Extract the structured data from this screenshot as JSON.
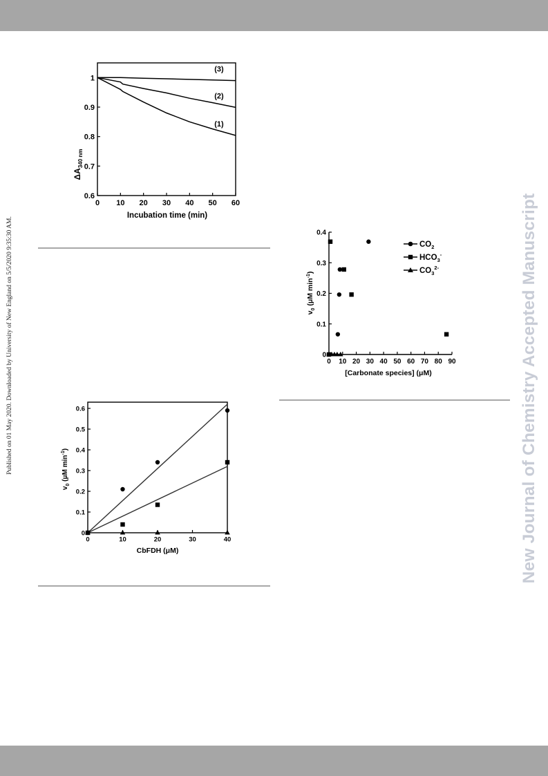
{
  "page": {
    "published_note": "Published on 01 May 2020. Downloaded by University of New England on 5/5/2020 9:35:30 AM.",
    "watermark": "New Journal of Chemistry Accepted Manuscript"
  },
  "chart_data": [
    {
      "type": "line",
      "ylabel_main": "ΔA",
      "ylabel_sub": "340 nm",
      "xlabel": "Incubation time (min)",
      "xlim": [
        0,
        60
      ],
      "ylim": [
        0.6,
        1.05
      ],
      "xticks": [
        "0",
        "10",
        "20",
        "30",
        "40",
        "50",
        "60"
      ],
      "yticks": [
        "0.6",
        "0.7",
        "0.8",
        "0.9",
        "1"
      ],
      "grid": false,
      "series": [
        {
          "name": "(1)",
          "x": [
            0,
            10,
            11,
            20,
            30,
            40,
            50,
            60
          ],
          "y": [
            1.0,
            0.96,
            0.953,
            0.917,
            0.88,
            0.85,
            0.826,
            0.804
          ]
        },
        {
          "name": "(2)",
          "x": [
            0,
            10,
            11,
            20,
            30,
            40,
            50,
            60
          ],
          "y": [
            1.0,
            0.985,
            0.978,
            0.963,
            0.948,
            0.93,
            0.915,
            0.899
          ]
        },
        {
          "name": "(3)",
          "x": [
            0,
            10,
            20,
            30,
            40,
            50,
            60
          ],
          "y": [
            1.0,
            1.0,
            0.998,
            0.996,
            0.994,
            0.992,
            0.99
          ]
        }
      ]
    },
    {
      "type": "scatter",
      "ylabel_main": "v",
      "ylabel_sub": "0",
      "ylabel_rest": " (μM min",
      "ylabel_sup": "-1",
      "ylabel_end": ")",
      "xlabel": "[Carbonate species] (μM)",
      "xlim": [
        0,
        90
      ],
      "ylim": [
        0,
        0.4
      ],
      "xticks": [
        "0",
        "10",
        "20",
        "30",
        "40",
        "50",
        "60",
        "70",
        "80",
        "90"
      ],
      "yticks": [
        "0",
        "0.1",
        "0.2",
        "0.3",
        "0.4"
      ],
      "grid": false,
      "legend": "top-right",
      "legend_entries": [
        {
          "main": "CO",
          "sub": "2",
          "sup": ""
        },
        {
          "main": "HCO",
          "sub": "3",
          "sup": "-"
        },
        {
          "main": "CO",
          "sub": "3",
          "sup": "2-"
        }
      ],
      "series": [
        {
          "marker": "circle",
          "x": [
            0,
            6.5,
            7.5,
            8,
            29
          ],
          "y": [
            0,
            0.066,
            0.196,
            0.278,
            0.369
          ]
        },
        {
          "marker": "square",
          "x": [
            0,
            1,
            11,
            16.5,
            86
          ],
          "y": [
            0,
            0.369,
            0.278,
            0.196,
            0.066
          ]
        },
        {
          "marker": "triangle",
          "x": [
            0,
            2,
            4,
            6,
            8.5
          ],
          "y": [
            0,
            0,
            0,
            0,
            0
          ]
        }
      ]
    },
    {
      "type": "scatter",
      "ylabel_main": "v",
      "ylabel_sub": "0",
      "ylabel_rest": " (μM min",
      "ylabel_sup": "-1",
      "ylabel_end": ")",
      "xlabel": "CbFDH (μM)",
      "xlim": [
        0,
        40
      ],
      "ylim": [
        0,
        0.63
      ],
      "xticks": [
        "0",
        "10",
        "20",
        "30",
        "40"
      ],
      "yticks": [
        "0",
        "0.1",
        "0.2",
        "0.3",
        "0.4",
        "0.5",
        "0.6"
      ],
      "grid": false,
      "series": [
        {
          "marker": "circle",
          "x": [
            0,
            10,
            20,
            40
          ],
          "y": [
            0,
            0.21,
            0.34,
            0.59
          ]
        },
        {
          "marker": "square",
          "x": [
            0,
            10,
            20,
            40
          ],
          "y": [
            0,
            0.04,
            0.135,
            0.34
          ]
        },
        {
          "marker": "triangle",
          "x": [
            0,
            10,
            20,
            40
          ],
          "y": [
            0,
            0,
            0,
            0
          ]
        }
      ],
      "fit_lines": [
        {
          "x": [
            0,
            40
          ],
          "y": [
            0,
            0.62
          ]
        },
        {
          "x": [
            0,
            40
          ],
          "y": [
            0,
            0.32
          ]
        }
      ]
    }
  ]
}
